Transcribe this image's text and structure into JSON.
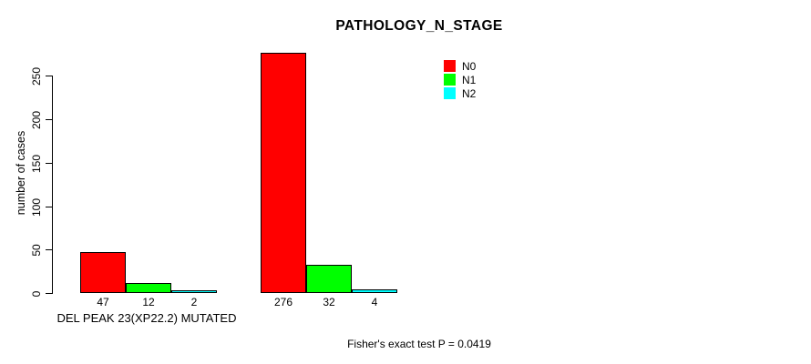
{
  "title": "PATHOLOGY_N_STAGE",
  "footer": "Fisher's exact test P = 0.0419",
  "chart_data": {
    "type": "bar",
    "title": "PATHOLOGY_N_STAGE",
    "ylabel": "number of cases",
    "xlabel": "DEL PEAK 23(XP22.2) MUTATED",
    "categories": [
      "DEL PEAK 23(XP22.2) MUTATED",
      ""
    ],
    "series": [
      {
        "name": "N0",
        "color": "#FF0000",
        "values": [
          47,
          276
        ]
      },
      {
        "name": "N1",
        "color": "#00FF00",
        "values": [
          12,
          32
        ]
      },
      {
        "name": "N2",
        "color": "#00FFFF",
        "values": [
          2,
          4
        ]
      }
    ],
    "bar_value_labels": [
      [
        47,
        12,
        2
      ],
      [
        276,
        32,
        4
      ]
    ],
    "yticks": [
      0,
      50,
      100,
      150,
      200,
      250
    ],
    "ylim": [
      0,
      276
    ],
    "grid": false,
    "legend_position": "top-right",
    "footer": "Fisher's exact test P = 0.0419",
    "legend": {
      "entries": [
        {
          "label": "N0",
          "color": "#FF0000"
        },
        {
          "label": "N1",
          "color": "#00FF00"
        },
        {
          "label": "N2",
          "color": "#00FFFF"
        }
      ]
    }
  }
}
